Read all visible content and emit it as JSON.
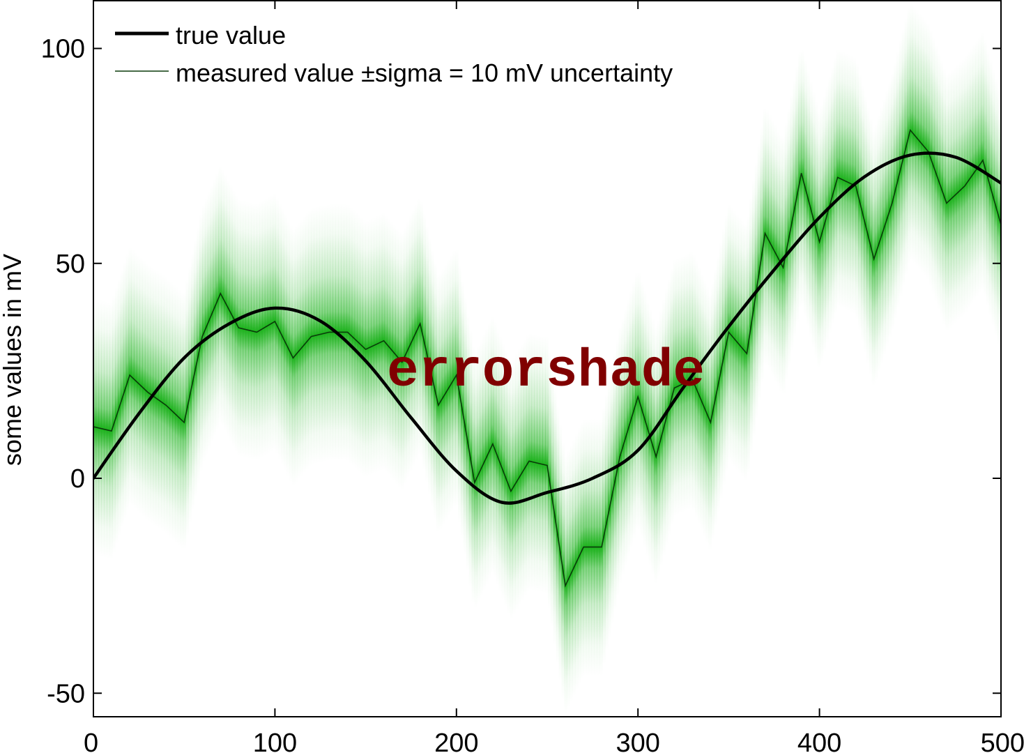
{
  "chart_data": {
    "type": "line",
    "title": "",
    "xlabel": "",
    "ylabel": "some values in mV",
    "xlim": [
      0,
      500
    ],
    "ylim": [
      -55,
      110
    ],
    "xticks": [
      0,
      100,
      200,
      300,
      400,
      500
    ],
    "yticks": [
      -50,
      0,
      50,
      100
    ],
    "grid": false,
    "legend_position": "top-left",
    "annotation": "errorshade",
    "annotation_color": "#800000",
    "shade_color": "#1db21d",
    "sigma": 10,
    "series": [
      {
        "name": "true value",
        "color": "#000000",
        "x": [
          0,
          25,
          50,
          75,
          100,
          125,
          150,
          175,
          200,
          225,
          250,
          275,
          300,
          325,
          350,
          375,
          400,
          425,
          450,
          475,
          500
        ],
        "y": [
          0,
          15,
          28,
          36,
          39.6,
          36.6,
          27.3,
          14.1,
          1.7,
          -5.6,
          -3.3,
          0,
          6.5,
          21.1,
          35.3,
          48.5,
          60.7,
          70.2,
          75.2,
          74.7,
          68.7
        ]
      },
      {
        "name": "measured value ±sigma = 10 mV uncertainty",
        "color": "#0a3a0a",
        "x": [
          0,
          10,
          20,
          30,
          40,
          50,
          60,
          70,
          80,
          90,
          100,
          110,
          120,
          130,
          140,
          150,
          160,
          170,
          180,
          190,
          200,
          210,
          220,
          230,
          240,
          250,
          260,
          270,
          280,
          290,
          300,
          310,
          320,
          330,
          340,
          350,
          360,
          370,
          380,
          390,
          400,
          410,
          420,
          430,
          440,
          450,
          460,
          470,
          480,
          490,
          500
        ],
        "y": [
          12,
          11,
          24,
          20,
          17,
          13,
          33,
          43,
          35,
          34,
          36.5,
          28,
          33,
          34,
          34,
          30,
          32,
          27,
          36,
          17,
          24,
          -1,
          8,
          -3,
          4,
          3,
          -25,
          -16,
          -16,
          5,
          19,
          5,
          21,
          23,
          13,
          34,
          29,
          57,
          49,
          71,
          55,
          70,
          68,
          51,
          64,
          81,
          76,
          64,
          68,
          74,
          59
        ]
      }
    ]
  }
}
